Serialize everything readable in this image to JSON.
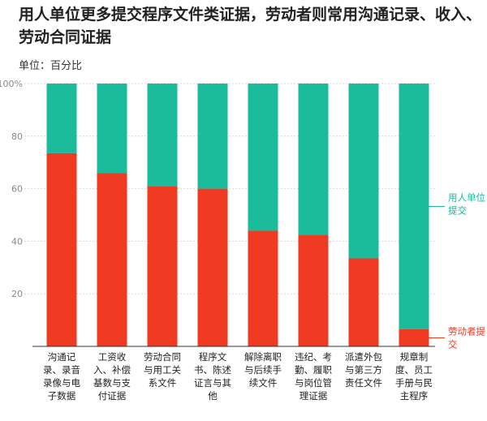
{
  "title": "用人单位更多提交程序文件类证据，劳动者则常用沟通记录、收入、劳动合同证据",
  "unit_label": "单位：百分比",
  "colors": {
    "employer": "#1abc9c",
    "worker": "#f03a22"
  },
  "chart_data": {
    "type": "bar",
    "stacked": true,
    "categories": [
      [
        "沟通记",
        "录、录音",
        "录像与电",
        "子数据"
      ],
      [
        "工资收",
        "入、补偿",
        "基数与支",
        "付证据"
      ],
      [
        "劳动合同",
        "与用工关",
        "系文件"
      ],
      [
        "程序文",
        "书、陈述",
        "证言与其",
        "他"
      ],
      [
        "解除离职",
        "与后续手",
        "续文件"
      ],
      [
        "违纪、考",
        "勤、履职",
        "与岗位管",
        "理证据"
      ],
      [
        "派遣外包",
        "与第三方",
        "责任文件"
      ],
      [
        "规章制",
        "度、员工",
        "手册与民",
        "主程序"
      ]
    ],
    "series": [
      {
        "name": "劳动者提交",
        "label_lines": [
          "劳动者提",
          "交"
        ],
        "values": [
          73.5,
          66,
          61,
          60,
          44,
          42.5,
          33.5,
          6.5
        ]
      },
      {
        "name": "用人单位提交",
        "label_lines": [
          "用人单位",
          "提交"
        ],
        "values": [
          26.5,
          34,
          39,
          40,
          56,
          57.5,
          66.5,
          93.5
        ]
      }
    ],
    "ylim": [
      0,
      100
    ],
    "yticks": [
      20,
      40,
      60,
      80,
      "100%"
    ],
    "grid": true
  }
}
